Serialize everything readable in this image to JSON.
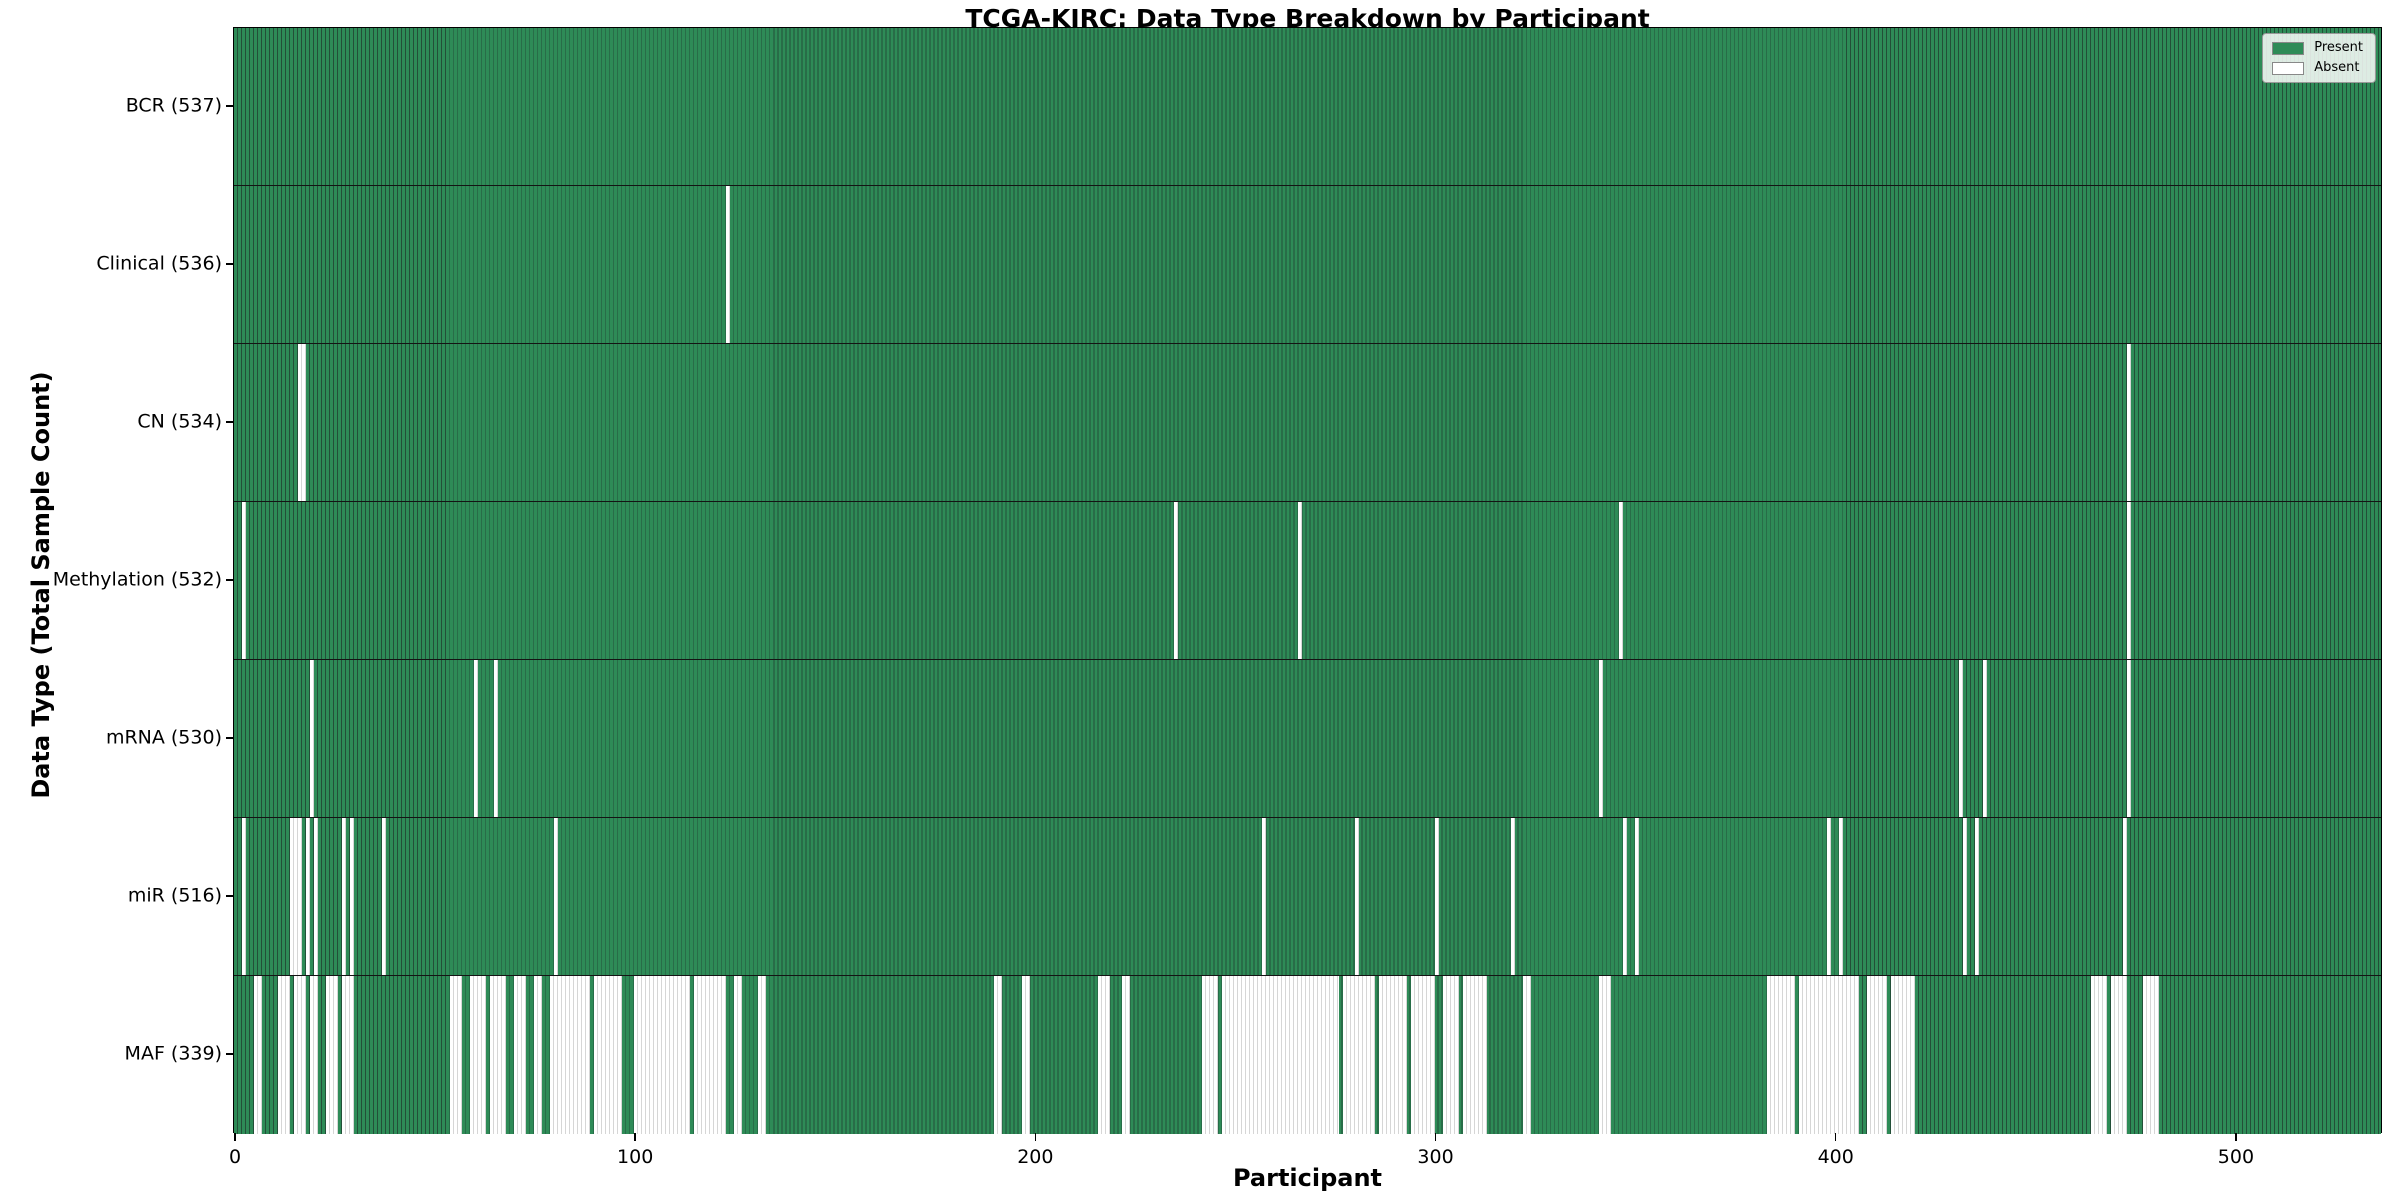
{
  "title": "TCGA-KIRC: Data Type Breakdown by Participant",
  "axes": {
    "x_label": "Participant",
    "y_label": "Data Type (Total Sample Count)"
  },
  "legend": {
    "present_label": "Present",
    "absent_label": "Absent"
  },
  "colors": {
    "present": "#2e8b57",
    "present_edge": "#234f38",
    "absent": "#ffffff",
    "absent_edge": "#d6d6d6",
    "row_boundary": "#141414"
  },
  "chart_data": {
    "type": "heatmap",
    "title": "TCGA-KIRC: Data Type Breakdown by Participant",
    "xlabel": "Participant",
    "ylabel": "Data Type (Total Sample Count)",
    "n_participants": 537,
    "x_ticks": [
      0,
      100,
      200,
      300,
      400,
      500
    ],
    "legend_entries": [
      "Present",
      "Absent"
    ],
    "legend_position": "upper right",
    "rows": [
      {
        "label": "BCR (537)",
        "data_type": "BCR",
        "present_count": 537,
        "absent_ranges": []
      },
      {
        "label": "Clinical (536)",
        "data_type": "Clinical",
        "present_count": 536,
        "absent_ranges": [
          [
            123,
            123
          ]
        ]
      },
      {
        "label": "CN (534)",
        "data_type": "CN",
        "present_count": 534,
        "absent_ranges": [
          [
            16,
            17
          ],
          [
            473,
            473
          ]
        ]
      },
      {
        "label": "Methylation (532)",
        "data_type": "Methylation",
        "present_count": 532,
        "absent_ranges": [
          [
            2,
            2
          ],
          [
            235,
            235
          ],
          [
            266,
            266
          ],
          [
            346,
            346
          ],
          [
            473,
            473
          ]
        ]
      },
      {
        "label": "mRNA (530)",
        "data_type": "mRNA",
        "present_count": 530,
        "absent_ranges": [
          [
            19,
            19
          ],
          [
            60,
            60
          ],
          [
            65,
            65
          ],
          [
            341,
            341
          ],
          [
            431,
            431
          ],
          [
            437,
            437
          ],
          [
            473,
            473
          ]
        ]
      },
      {
        "label": "miR (516)",
        "data_type": "miR",
        "present_count": 516,
        "absent_ranges": [
          [
            2,
            2
          ],
          [
            14,
            16
          ],
          [
            18,
            18
          ],
          [
            20,
            20
          ],
          [
            27,
            27
          ],
          [
            29,
            29
          ],
          [
            37,
            37
          ],
          [
            80,
            80
          ],
          [
            257,
            257
          ],
          [
            280,
            280
          ],
          [
            300,
            300
          ],
          [
            319,
            319
          ],
          [
            347,
            347
          ],
          [
            350,
            350
          ],
          [
            398,
            398
          ],
          [
            401,
            401
          ],
          [
            432,
            432
          ],
          [
            435,
            435
          ],
          [
            472,
            472
          ]
        ]
      },
      {
        "label": "MAF (339)",
        "data_type": "MAF",
        "present_count": 339,
        "absent_ranges": [
          [
            5,
            6
          ],
          [
            11,
            13
          ],
          [
            15,
            17
          ],
          [
            19,
            20
          ],
          [
            23,
            25
          ],
          [
            27,
            29
          ],
          [
            54,
            56
          ],
          [
            59,
            62
          ],
          [
            64,
            67
          ],
          [
            70,
            72
          ],
          [
            75,
            76
          ],
          [
            79,
            88
          ],
          [
            90,
            96
          ],
          [
            100,
            113
          ],
          [
            115,
            122
          ],
          [
            125,
            126
          ],
          [
            131,
            132
          ],
          [
            190,
            191
          ],
          [
            197,
            198
          ],
          [
            216,
            218
          ],
          [
            222,
            223
          ],
          [
            242,
            245
          ],
          [
            247,
            275
          ],
          [
            277,
            284
          ],
          [
            286,
            292
          ],
          [
            294,
            299
          ],
          [
            302,
            305
          ],
          [
            307,
            312
          ],
          [
            322,
            323
          ],
          [
            341,
            343
          ],
          [
            383,
            389
          ],
          [
            391,
            405
          ],
          [
            408,
            412
          ],
          [
            414,
            419
          ],
          [
            464,
            467
          ],
          [
            469,
            472
          ],
          [
            477,
            480
          ]
        ]
      }
    ]
  }
}
